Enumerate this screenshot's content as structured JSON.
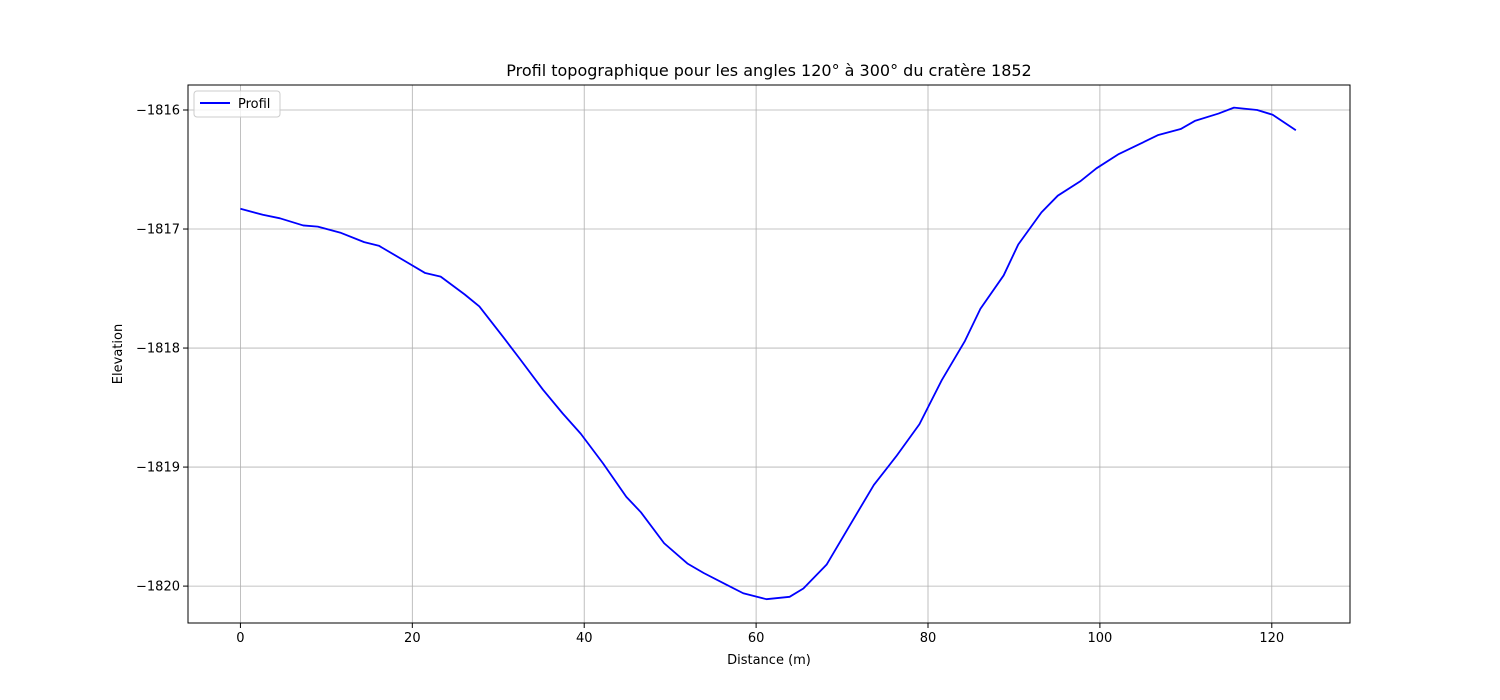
{
  "chart_data": {
    "type": "line",
    "title": "Profil topographique pour les angles 120° à 300° du cratère 1852",
    "xlabel": "Distance (m)",
    "ylabel": "Elevation",
    "xlim": [
      -6.1,
      129.1
    ],
    "ylim": [
      -1820.31,
      -1815.79
    ],
    "xticks": [
      0,
      20,
      40,
      60,
      80,
      100,
      120
    ],
    "xtick_labels": [
      "0",
      "20",
      "40",
      "60",
      "80",
      "100",
      "120"
    ],
    "yticks": [
      -1820,
      -1819,
      -1818,
      -1817,
      -1816
    ],
    "ytick_labels": [
      "−1820",
      "−1819",
      "−1818",
      "−1817",
      "−1816"
    ],
    "grid": true,
    "legend": {
      "position": "top-left"
    },
    "series": [
      {
        "name": "Profil",
        "color": "#0000ff",
        "x": [
          0,
          2.6,
          4.6,
          7.3,
          9.0,
          11.6,
          14.4,
          16.1,
          19.4,
          21.5,
          23.3,
          26.1,
          27.8,
          30.6,
          32.5,
          35.2,
          37.5,
          39.6,
          42.2,
          44.9,
          46.6,
          49.3,
          52.0,
          53.9,
          56.6,
          58.5,
          61.2,
          63.9,
          65.5,
          68.2,
          70.9,
          73.7,
          76.3,
          79.0,
          81.6,
          84.3,
          86.1,
          88.8,
          90.5,
          93.2,
          95.1,
          97.7,
          99.6,
          102.2,
          104.8,
          106.8,
          109.4,
          111.1,
          113.8,
          115.6,
          118.3,
          120.1,
          122.8
        ],
        "values": [
          -1816.83,
          -1816.88,
          -1816.91,
          -1816.97,
          -1816.98,
          -1817.03,
          -1817.11,
          -1817.14,
          -1817.28,
          -1817.37,
          -1817.4,
          -1817.55,
          -1817.65,
          -1817.91,
          -1818.09,
          -1818.35,
          -1818.55,
          -1818.72,
          -1818.97,
          -1819.25,
          -1819.38,
          -1819.64,
          -1819.81,
          -1819.89,
          -1819.99,
          -1820.06,
          -1820.11,
          -1820.09,
          -1820.02,
          -1819.82,
          -1819.49,
          -1819.15,
          -1818.91,
          -1818.64,
          -1818.27,
          -1817.94,
          -1817.67,
          -1817.39,
          -1817.13,
          -1816.86,
          -1816.72,
          -1816.6,
          -1816.49,
          -1816.37,
          -1816.28,
          -1816.21,
          -1816.16,
          -1816.09,
          -1816.03,
          -1815.98,
          -1816.0,
          -1816.04,
          -1816.17
        ]
      }
    ]
  }
}
